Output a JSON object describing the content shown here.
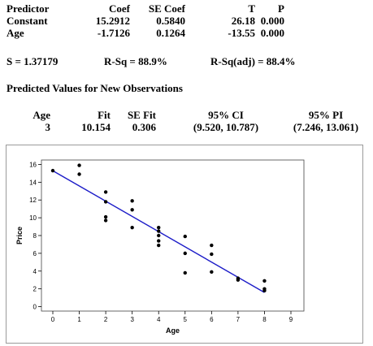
{
  "regression_table": {
    "headers": {
      "predictor": "Predictor",
      "coef": "Coef",
      "se_coef": "SE Coef",
      "t": "T",
      "p": "P"
    },
    "rows": [
      {
        "predictor": "Constant",
        "coef": "15.2912",
        "se_coef": "0.5840",
        "t": "26.18",
        "p": "0.000"
      },
      {
        "predictor": "Age",
        "coef": "-1.7126",
        "se_coef": "0.1264",
        "t": "-13.55",
        "p": "0.000"
      }
    ]
  },
  "fit_stats": {
    "s": "S = 1.37179",
    "rsq": "R-Sq = 88.9%",
    "rsq_adj": "R-Sq(adj) = 88.4%"
  },
  "prediction": {
    "title": "Predicted Values for New Observations",
    "headers": {
      "age": "Age",
      "fit": "Fit",
      "se_fit": "SE Fit",
      "ci": "95% CI",
      "pi": "95% PI"
    },
    "row": {
      "age": "3",
      "fit": "10.154",
      "se_fit": "0.306",
      "ci": "(9.520, 10.787)",
      "pi": "(7.246, 13.061)"
    }
  },
  "chart_data": {
    "type": "scatter",
    "title": "",
    "xlabel": "Age",
    "ylabel": "Price",
    "xlim": [
      0,
      9
    ],
    "ylim": [
      0,
      16
    ],
    "x_ticks": [
      "0",
      "1",
      "2",
      "3",
      "4",
      "5",
      "6",
      "7",
      "8",
      "9"
    ],
    "y_ticks": [
      "0",
      "2",
      "4",
      "6",
      "8",
      "10",
      "12",
      "14",
      "16"
    ],
    "points": [
      {
        "x": 0,
        "y": 15.3
      },
      {
        "x": 1,
        "y": 15.9
      },
      {
        "x": 1,
        "y": 14.9
      },
      {
        "x": 2,
        "y": 12.9
      },
      {
        "x": 2,
        "y": 11.8
      },
      {
        "x": 2,
        "y": 10.1
      },
      {
        "x": 2,
        "y": 9.7
      },
      {
        "x": 3,
        "y": 11.9
      },
      {
        "x": 3,
        "y": 10.9
      },
      {
        "x": 3,
        "y": 8.9
      },
      {
        "x": 4,
        "y": 8.9
      },
      {
        "x": 4,
        "y": 8.5
      },
      {
        "x": 4,
        "y": 8.0
      },
      {
        "x": 4,
        "y": 7.4
      },
      {
        "x": 4,
        "y": 6.9
      },
      {
        "x": 5,
        "y": 7.9
      },
      {
        "x": 5,
        "y": 6.0
      },
      {
        "x": 5,
        "y": 3.8
      },
      {
        "x": 6,
        "y": 6.9
      },
      {
        "x": 6,
        "y": 5.9
      },
      {
        "x": 6,
        "y": 3.9
      },
      {
        "x": 7,
        "y": 3.2
      },
      {
        "x": 7,
        "y": 3.0
      },
      {
        "x": 8,
        "y": 2.9
      },
      {
        "x": 8,
        "y": 2.0
      },
      {
        "x": 8,
        "y": 1.8
      }
    ],
    "fit_line": {
      "intercept": 15.2912,
      "slope": -1.7126,
      "x_range": [
        0,
        8
      ]
    },
    "colors": {
      "line": "#1c1cc8",
      "points": "#000000",
      "frame": "#9a9a9a"
    }
  }
}
